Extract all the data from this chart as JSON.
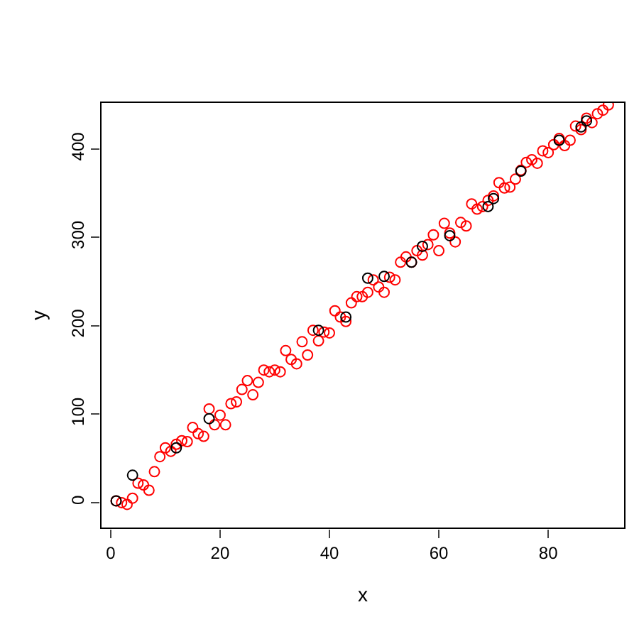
{
  "chart_data": {
    "type": "scatter",
    "xlabel": "x",
    "ylabel": "y",
    "xlim": [
      -1.8,
      94
    ],
    "ylim": [
      -29,
      453
    ],
    "xticks": [
      0,
      20,
      40,
      60,
      80
    ],
    "yticks": [
      0,
      100,
      200,
      300,
      400
    ],
    "grid": false,
    "marker": "circle",
    "series": [
      {
        "color": "#ff0000",
        "x": [
          1,
          2,
          3,
          4,
          5,
          6,
          7,
          8,
          9,
          10,
          11,
          12,
          13,
          14,
          15,
          16,
          17,
          18,
          19,
          20,
          21,
          22,
          23,
          24,
          25,
          26,
          27,
          28,
          29,
          30,
          31,
          32,
          33,
          34,
          35,
          36,
          37,
          38,
          39,
          40,
          41,
          42,
          43,
          44,
          45,
          46,
          47,
          48,
          49,
          50,
          51,
          52,
          53,
          54,
          55,
          56,
          57,
          58,
          59,
          60,
          61,
          62,
          63,
          64,
          65,
          66,
          67,
          68,
          69,
          70,
          71,
          72,
          73,
          74,
          75,
          76,
          77,
          78,
          79,
          80,
          81,
          82,
          83,
          84,
          85,
          86,
          87,
          88,
          89,
          90,
          91
        ],
        "values": [
          2,
          0,
          -2,
          5,
          22,
          20,
          14,
          35,
          52,
          62,
          58,
          66,
          70,
          69,
          85,
          78,
          75,
          106,
          88,
          99,
          88,
          112,
          114,
          128,
          138,
          122,
          136,
          150,
          148,
          150,
          148,
          172,
          162,
          157,
          182,
          167,
          195,
          183,
          193,
          192,
          217,
          210,
          205,
          226,
          233,
          233,
          238,
          252,
          244,
          238,
          255,
          252,
          272,
          278,
          272,
          285,
          280,
          292,
          303,
          285,
          316,
          305,
          295,
          317,
          313,
          338,
          332,
          335,
          342,
          347,
          362,
          356,
          357,
          366,
          376,
          385,
          388,
          384,
          398,
          396,
          405,
          412,
          404,
          410,
          426,
          422,
          435,
          430,
          440,
          444,
          450
        ]
      },
      {
        "color": "#000000",
        "x": [
          1,
          4,
          12,
          18,
          38,
          43,
          47,
          50,
          55,
          57,
          62,
          69,
          70,
          75,
          82,
          86,
          87
        ],
        "values": [
          2,
          31,
          62,
          95,
          195,
          210,
          254,
          256,
          272,
          290,
          302,
          335,
          344,
          375,
          410,
          425,
          432
        ]
      }
    ]
  }
}
